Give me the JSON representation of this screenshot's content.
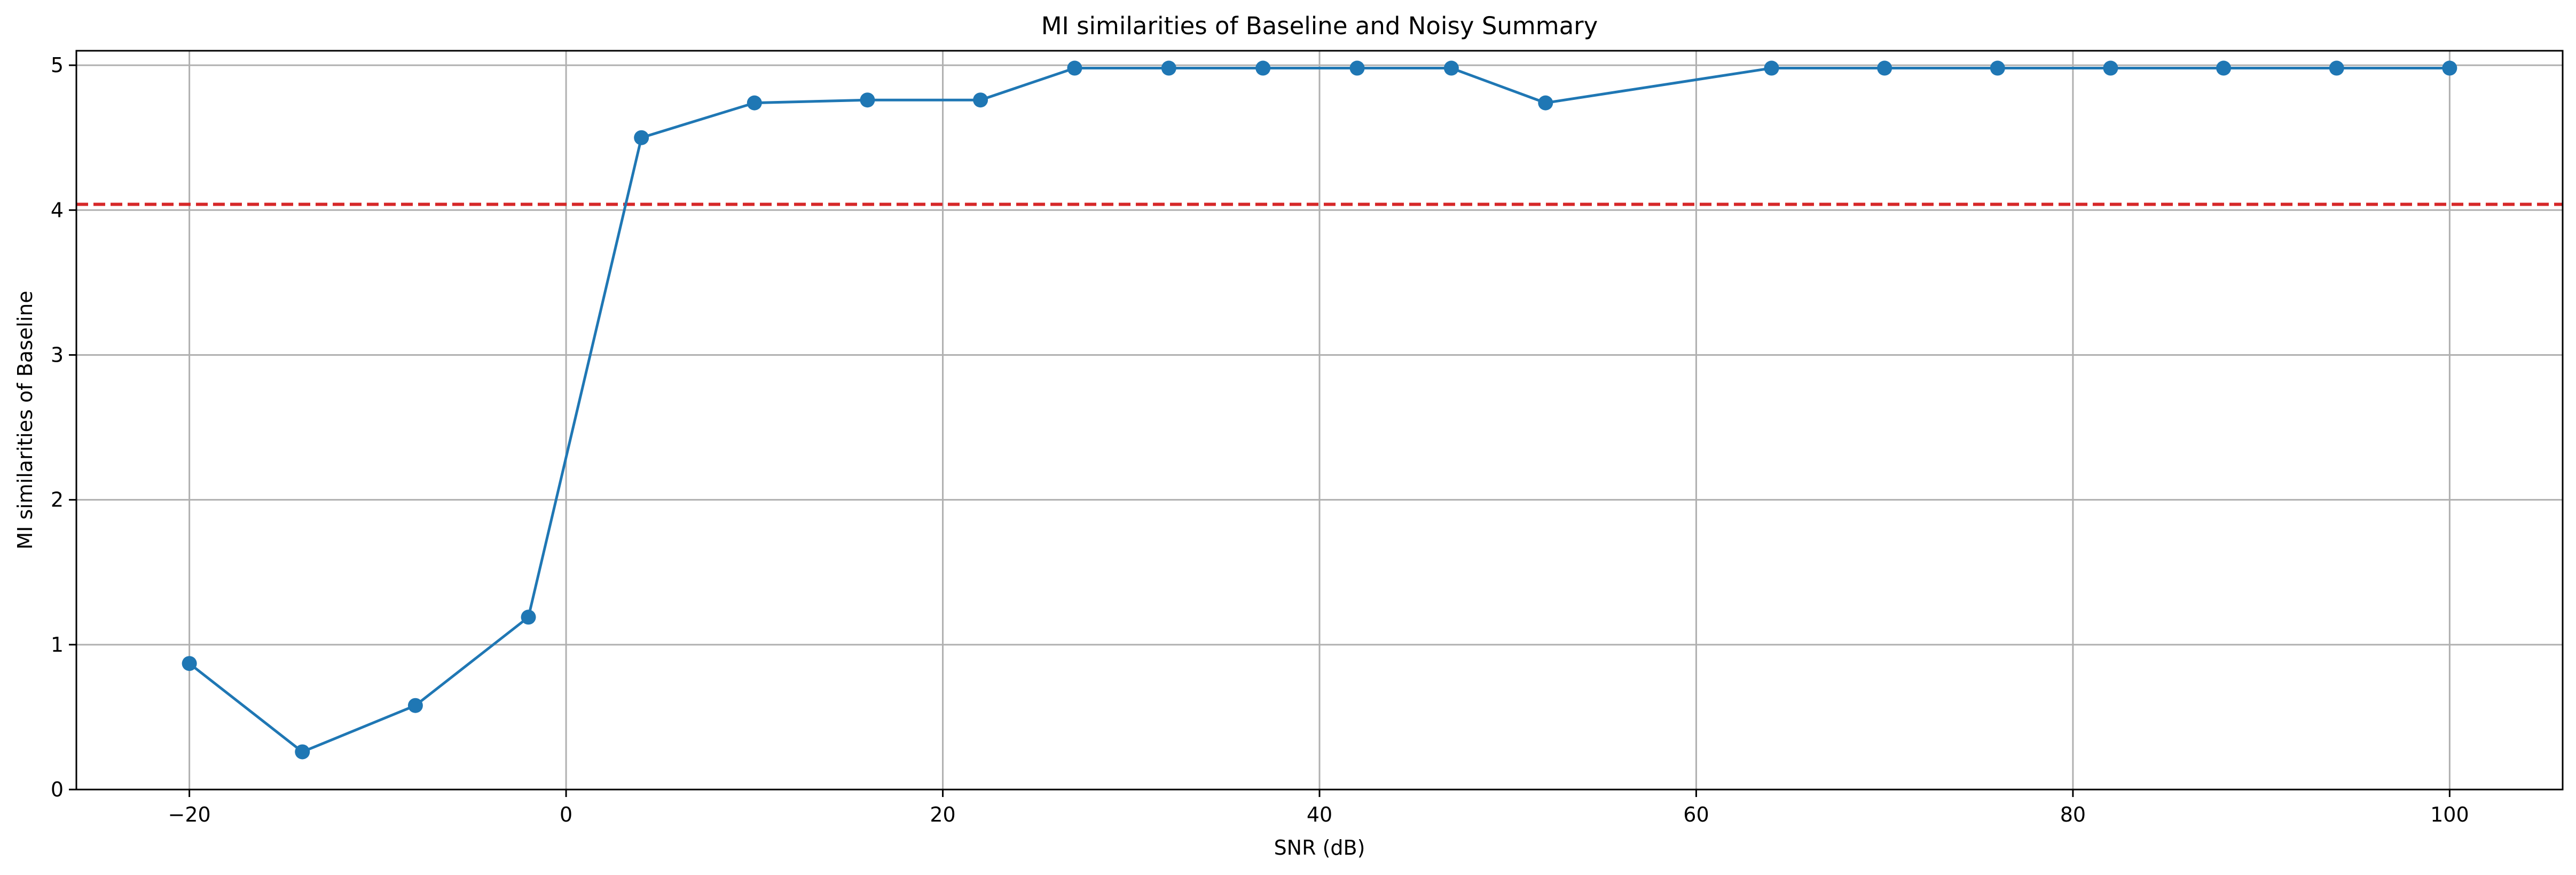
{
  "chart_data": {
    "type": "line",
    "title": "MI similarities of Baseline and Noisy Summary",
    "xlabel": "SNR (dB)",
    "ylabel": "MI similarities of Baseline",
    "xlim": [
      -26,
      106
    ],
    "ylim": [
      0,
      5.1
    ],
    "xticks": [
      -20,
      0,
      20,
      40,
      60,
      80,
      100
    ],
    "xtick_labels": [
      "−20",
      "0",
      "20",
      "40",
      "60",
      "80",
      "100"
    ],
    "yticks": [
      0,
      1,
      2,
      3,
      4,
      5
    ],
    "ytick_labels": [
      "0",
      "1",
      "2",
      "3",
      "4",
      "5"
    ],
    "grid": true,
    "legend": "none",
    "series": [
      {
        "color": "#1f77b4",
        "marker": "circle",
        "x": [
          -20,
          -14,
          -8,
          -2,
          4,
          10,
          16,
          22,
          27,
          32,
          37,
          42,
          47,
          52,
          64,
          70,
          76,
          82,
          88,
          94,
          100
        ],
        "y": [
          0.87,
          0.26,
          0.58,
          1.19,
          4.5,
          4.74,
          4.76,
          4.76,
          4.98,
          4.98,
          4.98,
          4.98,
          4.98,
          4.74,
          4.98,
          4.98,
          4.98,
          4.98,
          4.98,
          4.98,
          4.98
        ]
      }
    ],
    "reference_lines": [
      {
        "orientation": "horizontal",
        "y": 4.04,
        "color": "#d62728",
        "style": "dashed"
      }
    ]
  }
}
